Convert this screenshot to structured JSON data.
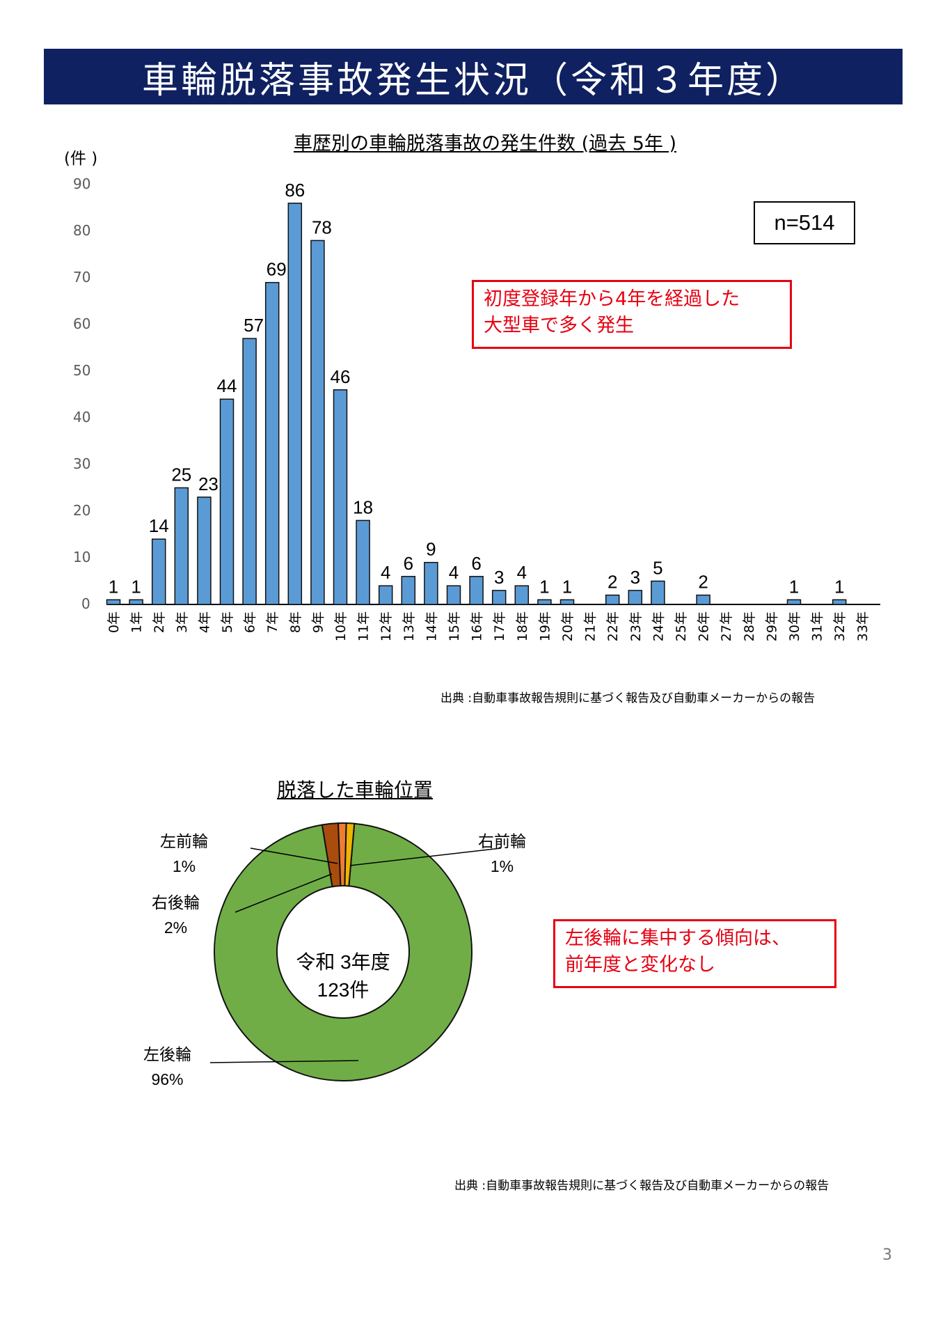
{
  "page": {
    "title": "車輪脱落事故発生状況（令和３年度）",
    "page_number": "3"
  },
  "bar_chart": {
    "title": "車歴別の車輪脱落事故の発生件数 (過去 5年 )",
    "y_unit": "(件 )",
    "n_label": "n=514",
    "note": [
      "初度登録年から4年を経過した",
      "大型車で多く発生"
    ],
    "source": "出典 :自動車事故報告規則に基づく報告及び自動車メーカーからの報告",
    "bar_color": "#5b9bd5"
  },
  "pie_chart": {
    "title": "脱落した車輪位置",
    "center_line1": "令和 3年度",
    "center_line2": "123件",
    "note": [
      "左後輪に集中する傾向は、",
      "前年度と変化なし"
    ],
    "source": "出典 :自動車事故報告規則に基づく報告及び自動車メーカーからの報告",
    "labels": {
      "left_front": {
        "name": "左前輪",
        "pct": "1%"
      },
      "right_front": {
        "name": "右前輪",
        "pct": "1%"
      },
      "right_rear": {
        "name": "右後輪",
        "pct": "2%"
      },
      "left_rear": {
        "name": "左後輪",
        "pct": "96%"
      }
    }
  },
  "chart_data": [
    {
      "type": "bar",
      "title": "車歴別の車輪脱落事故の発生件数 (過去 5年 )",
      "xlabel": "",
      "ylabel": "(件 )",
      "ylim": [
        0,
        90
      ],
      "yticks": [
        0,
        10,
        20,
        30,
        40,
        50,
        60,
        70,
        80,
        90
      ],
      "grid": false,
      "categories": [
        "0年",
        "1年",
        "2年",
        "3年",
        "4年",
        "5年",
        "6年",
        "7年",
        "8年",
        "9年",
        "10年",
        "11年",
        "12年",
        "13年",
        "14年",
        "15年",
        "16年",
        "17年",
        "18年",
        "19年",
        "20年",
        "21年",
        "22年",
        "23年",
        "24年",
        "25年",
        "26年",
        "27年",
        "28年",
        "29年",
        "30年",
        "31年",
        "32年",
        "33年"
      ],
      "values": [
        1,
        1,
        14,
        25,
        23,
        44,
        57,
        69,
        86,
        78,
        46,
        18,
        4,
        6,
        9,
        4,
        6,
        3,
        4,
        1,
        1,
        0,
        2,
        3,
        5,
        0,
        2,
        0,
        0,
        0,
        1,
        0,
        1,
        0
      ],
      "annotations": [
        "n=514",
        "初度登録年から4年を経過した大型車で多く発生"
      ]
    },
    {
      "type": "pie",
      "title": "脱落した車輪位置",
      "center_text": "令和 3年度 123件",
      "categories": [
        "左後輪",
        "右後輪",
        "左前輪",
        "右前輪"
      ],
      "values": [
        96,
        2,
        1,
        1
      ],
      "colors": [
        "#70ad47",
        "#a94c0e",
        "#ed7d31",
        "#f0b400"
      ],
      "annotations": [
        "左後輪に集中する傾向は、前年度と変化なし"
      ]
    }
  ]
}
